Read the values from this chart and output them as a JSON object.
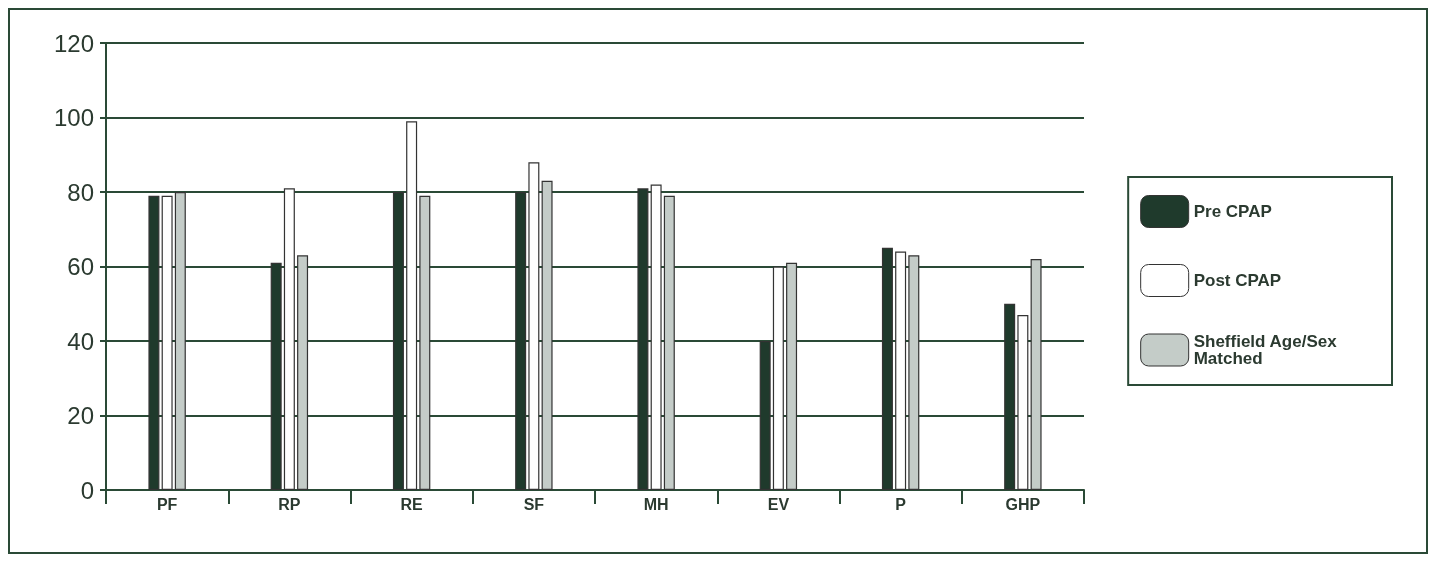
{
  "chart_data": {
    "type": "bar",
    "categories": [
      "PF",
      "RP",
      "RE",
      "SF",
      "MH",
      "EV",
      "P",
      "GHP"
    ],
    "series": [
      {
        "name": "Pre CPAP",
        "color": "#1f3a2c",
        "values": [
          79,
          61,
          80,
          80,
          81,
          40,
          65,
          50
        ]
      },
      {
        "name": "Post CPAP",
        "color": "#ffffff",
        "values": [
          79,
          81,
          99,
          88,
          82,
          60,
          64,
          47
        ]
      },
      {
        "name": "Sheffield Age/Sex Matched",
        "color": "#c4ccc8",
        "values": [
          80,
          63,
          79,
          83,
          79,
          61,
          63,
          62
        ]
      }
    ],
    "ylim": [
      0,
      120
    ],
    "yticks": [
      0,
      20,
      40,
      60,
      80,
      100,
      120
    ],
    "grid": "y",
    "legend": "right"
  }
}
